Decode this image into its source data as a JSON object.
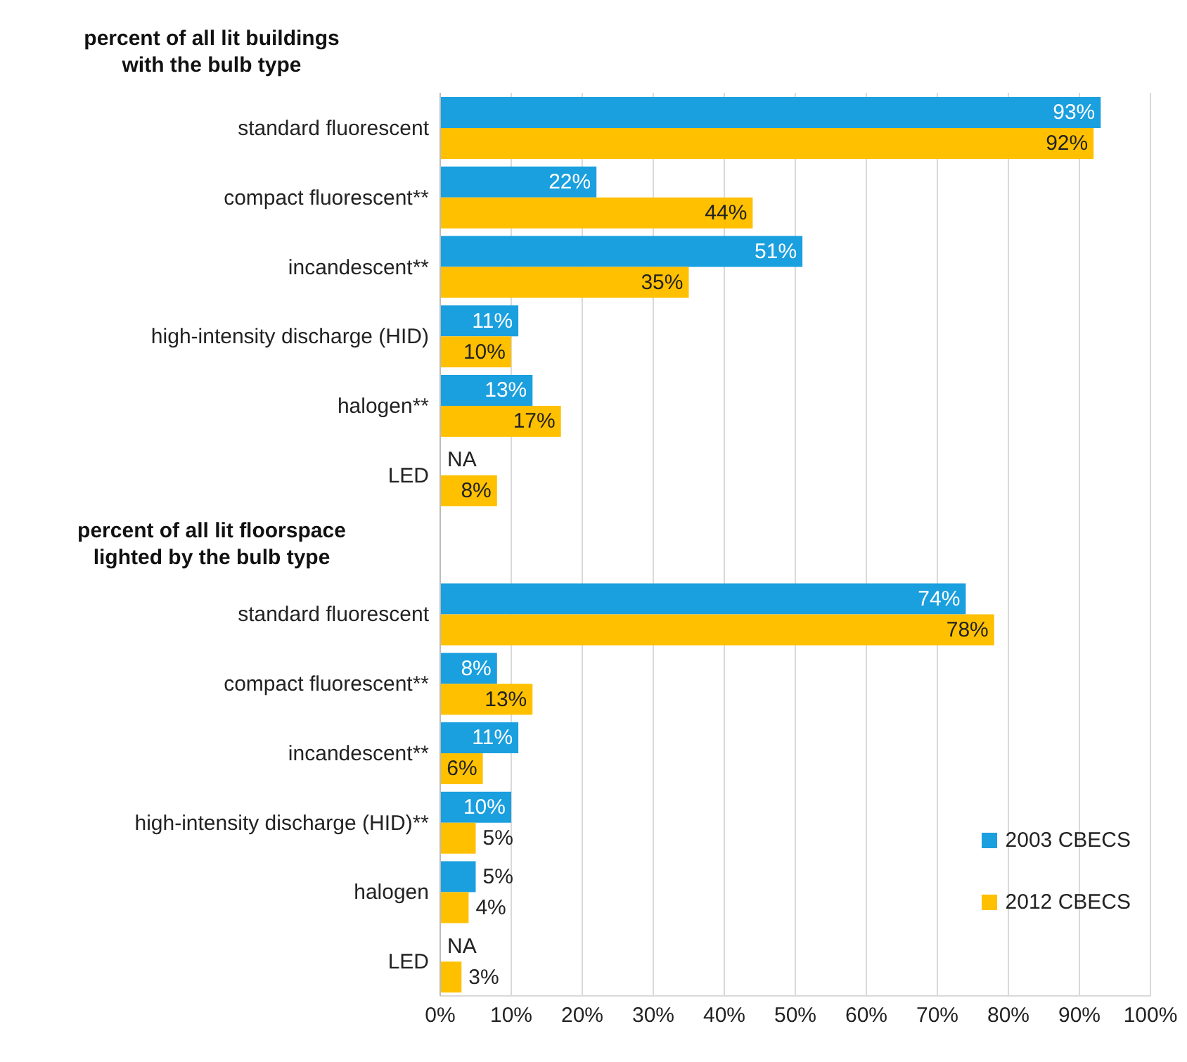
{
  "chart_data": {
    "type": "bar",
    "orientation": "horizontal",
    "categories": [
      "standard fluorescent",
      "compact fluorescent**",
      "incandescent**",
      "high-intensity discharge (HID)",
      "halogen**",
      "LED",
      null,
      "standard fluorescent",
      "compact fluorescent**",
      "incandescent**",
      "high-intensity discharge (HID)**",
      "halogen",
      "LED"
    ],
    "series": [
      {
        "name": "2003 CBECS",
        "color": "#1a9fdf",
        "values": [
          93,
          22,
          51,
          11,
          13,
          null,
          null,
          74,
          8,
          11,
          10,
          5,
          null
        ],
        "value_labels": [
          "93%",
          "22%",
          "51%",
          "11%",
          "13%",
          "NA",
          null,
          "74%",
          "8%",
          "11%",
          "10%",
          "5%",
          "NA"
        ]
      },
      {
        "name": "2012 CBECS",
        "color": "#ffc000",
        "values": [
          92,
          44,
          35,
          10,
          17,
          8,
          null,
          78,
          13,
          6,
          5,
          4,
          3
        ],
        "value_labels": [
          "92%",
          "44%",
          "35%",
          "10%",
          "17%",
          "8%",
          null,
          "78%",
          "13%",
          "6%",
          "5%",
          "4%",
          "3%"
        ]
      }
    ],
    "xlim": [
      0,
      100
    ],
    "xticks": [
      {
        "value": 0,
        "label": "0%"
      },
      {
        "value": 10,
        "label": "10%"
      },
      {
        "value": 20,
        "label": "20%"
      },
      {
        "value": 30,
        "label": "30%"
      },
      {
        "value": 40,
        "label": "40%"
      },
      {
        "value": 50,
        "label": "50%"
      },
      {
        "value": 60,
        "label": "60%"
      },
      {
        "value": 70,
        "label": "70%"
      },
      {
        "value": 80,
        "label": "80%"
      },
      {
        "value": 90,
        "label": "90%"
      },
      {
        "value": 100,
        "label": "100%"
      }
    ],
    "annotations": [
      "percent of all lit buildings\nwith the bulb type",
      "percent of all lit floorspace\nlighted by the bulb type"
    ],
    "grid": "x",
    "legend": "bottom right"
  }
}
